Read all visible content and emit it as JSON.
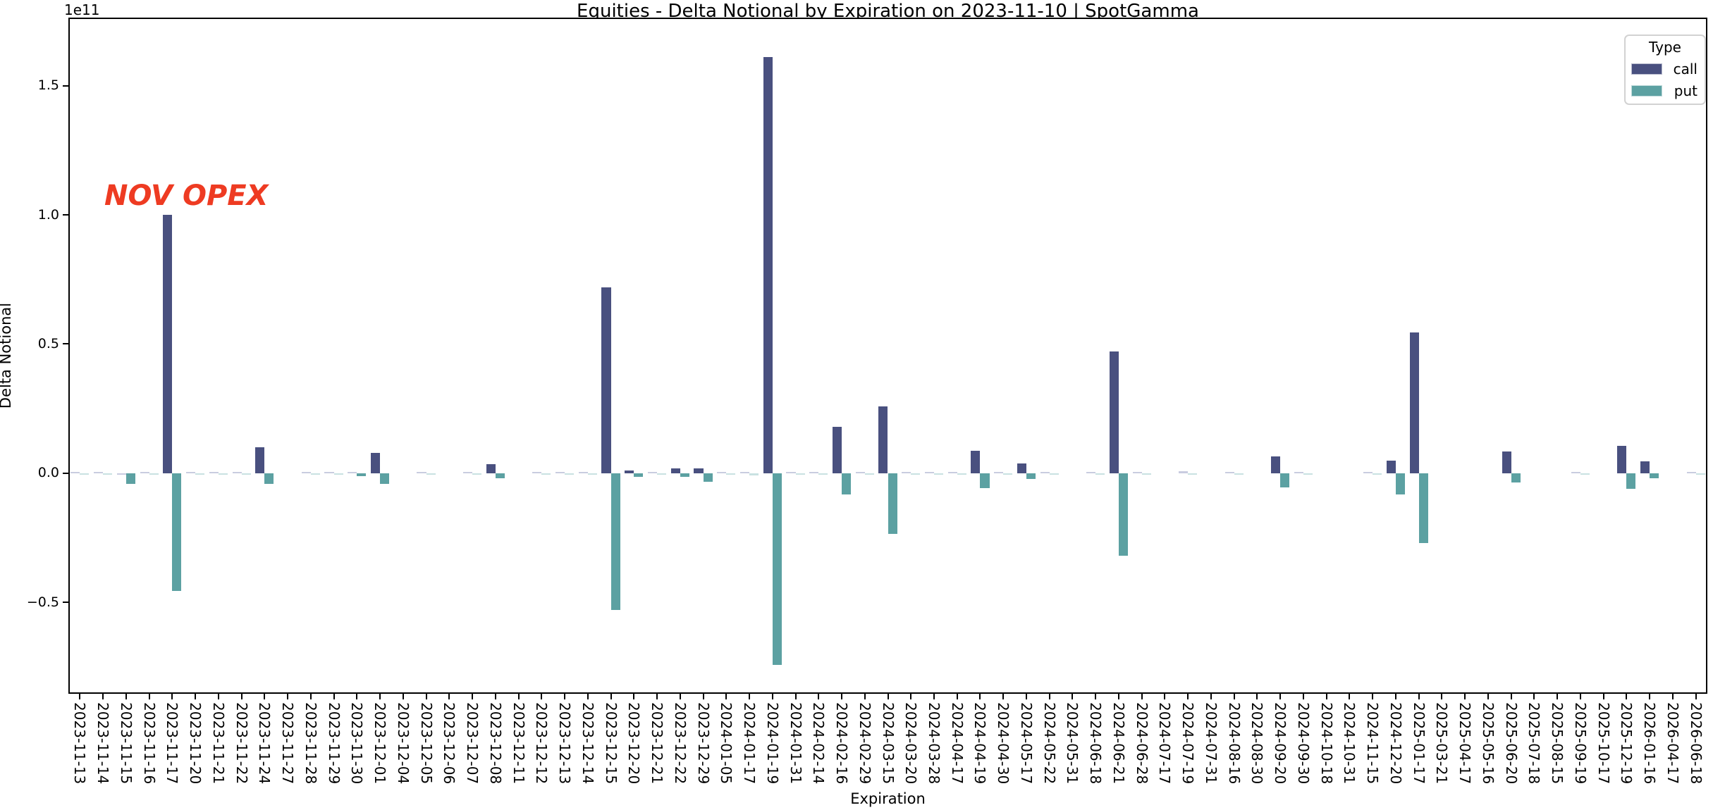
{
  "title": "Equities - Delta Notional by Expiration on 2023-11-10 | SpotGamma",
  "annotation": {
    "text": "NOV OPEX",
    "color": "#ee3b22"
  },
  "legend": {
    "title": "Type",
    "entries": [
      {
        "label": "call",
        "color": "#49507f"
      },
      {
        "label": "put",
        "color": "#5ca1a2"
      }
    ]
  },
  "axes": {
    "ylabel": "Delta Notional",
    "xlabel": "Expiration",
    "offset_text": "1e11"
  },
  "chart_data": {
    "type": "bar",
    "title": "Equities - Delta Notional by Expiration on 2023-11-10 | SpotGamma",
    "xlabel": "Expiration",
    "ylabel": "Delta Notional",
    "values_unit": "1e11",
    "ylim": [
      -0.853,
      1.763
    ],
    "yticks": [
      1.5,
      1.0,
      0.5,
      0.0,
      -0.5
    ],
    "ytick_labels": [
      "1.5",
      "1.0",
      "0.5",
      "0.0",
      "−0.5"
    ],
    "grid": false,
    "legend_position": "upper right",
    "categories": [
      "2023-11-13",
      "2023-11-14",
      "2023-11-15",
      "2023-11-16",
      "2023-11-17",
      "2023-11-20",
      "2023-11-21",
      "2023-11-22",
      "2023-11-24",
      "2023-11-27",
      "2023-11-28",
      "2023-11-29",
      "2023-11-30",
      "2023-12-01",
      "2023-12-04",
      "2023-12-05",
      "2023-12-06",
      "2023-12-07",
      "2023-12-08",
      "2023-12-11",
      "2023-12-12",
      "2023-12-13",
      "2023-12-14",
      "2023-12-15",
      "2023-12-20",
      "2023-12-21",
      "2023-12-22",
      "2023-12-29",
      "2024-01-05",
      "2024-01-17",
      "2024-01-19",
      "2024-01-31",
      "2024-02-14",
      "2024-02-16",
      "2024-02-29",
      "2024-03-15",
      "2024-03-20",
      "2024-03-28",
      "2024-04-17",
      "2024-04-19",
      "2024-04-30",
      "2024-05-17",
      "2024-05-22",
      "2024-05-31",
      "2024-06-18",
      "2024-06-21",
      "2024-06-28",
      "2024-07-17",
      "2024-07-19",
      "2024-07-31",
      "2024-08-16",
      "2024-08-30",
      "2024-09-20",
      "2024-09-30",
      "2024-10-18",
      "2024-10-31",
      "2024-11-15",
      "2024-12-20",
      "2025-01-17",
      "2025-03-21",
      "2025-04-17",
      "2025-05-16",
      "2025-06-20",
      "2025-07-18",
      "2025-08-15",
      "2025-09-19",
      "2025-10-17",
      "2025-12-19",
      "2026-01-16",
      "2026-04-17",
      "2026-06-18"
    ],
    "series": [
      {
        "name": "call",
        "color": "#49507f",
        "color_faint": "#c9cce0",
        "values": [
          0.003,
          0.002,
          -0.005,
          0.002,
          1.0,
          0.002,
          0.002,
          0.004,
          0.1,
          0,
          0.002,
          0.002,
          0.004,
          0.08,
          0,
          0.002,
          0,
          0.002,
          0.035,
          0,
          0.002,
          0.002,
          0.004,
          0.72,
          0.01,
          0.002,
          0.018,
          0.02,
          0.003,
          0.005,
          1.61,
          0.003,
          0.005,
          0.18,
          0.002,
          0.26,
          0.004,
          0.006,
          0.004,
          0.088,
          0.002,
          0.037,
          0.003,
          0,
          0.003,
          0.47,
          0.005,
          0,
          0.008,
          0,
          0.004,
          0,
          0.065,
          0.004,
          0,
          0,
          0.003,
          0.05,
          0.545,
          0,
          0,
          0,
          0.085,
          0,
          0,
          0.003,
          0,
          0.105,
          0.045,
          0,
          0.002
        ]
      },
      {
        "name": "put",
        "color": "#5ca1a2",
        "color_faint": "#c9e2e2",
        "values": [
          -0.003,
          -0.002,
          -0.04,
          -0.002,
          -0.455,
          -0.002,
          -0.002,
          -0.003,
          -0.04,
          0,
          -0.002,
          -0.002,
          -0.011,
          -0.042,
          0,
          -0.002,
          0,
          -0.002,
          -0.018,
          0,
          -0.002,
          -0.002,
          -0.003,
          -0.53,
          -0.015,
          -0.002,
          -0.014,
          -0.032,
          -0.002,
          -0.008,
          -0.74,
          -0.004,
          -0.003,
          -0.083,
          -0.002,
          -0.235,
          -0.002,
          -0.004,
          -0.004,
          -0.058,
          -0.002,
          -0.022,
          -0.002,
          0,
          -0.002,
          -0.32,
          -0.003,
          0,
          -0.005,
          0,
          -0.003,
          0,
          -0.054,
          -0.002,
          0,
          0,
          -0.002,
          -0.083,
          -0.27,
          0,
          0,
          0,
          -0.035,
          0,
          0,
          -0.002,
          0,
          -0.06,
          -0.02,
          0,
          -0.003
        ]
      }
    ]
  }
}
